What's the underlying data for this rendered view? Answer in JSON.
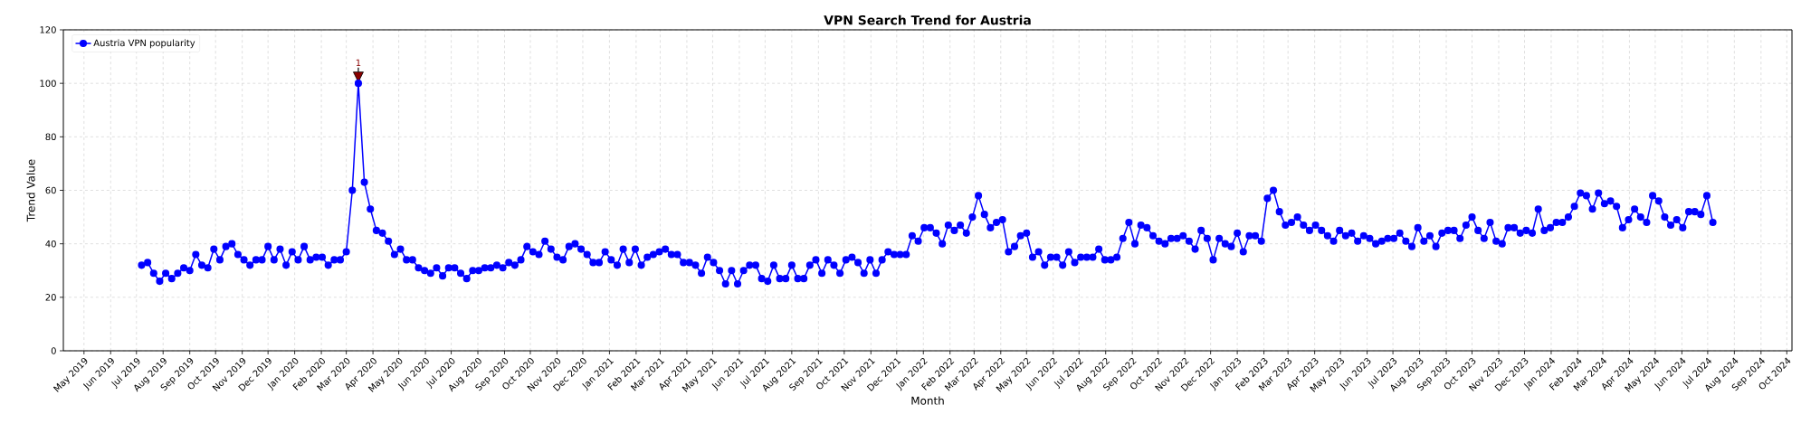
{
  "chart_data": {
    "type": "line",
    "title": "VPN Search Trend for Austria",
    "xlabel": "Month",
    "ylabel": "Trend Value",
    "x": [
      "2019-07-07",
      "2019-07-14",
      "2019-07-21",
      "2019-07-28",
      "2019-08-04",
      "2019-08-11",
      "2019-08-18",
      "2019-08-25",
      "2019-09-01",
      "2019-09-08",
      "2019-09-15",
      "2019-09-22",
      "2019-09-29",
      "2019-10-06",
      "2019-10-13",
      "2019-10-20",
      "2019-10-27",
      "2019-11-03",
      "2019-11-10",
      "2019-11-17",
      "2019-11-24",
      "2019-12-01",
      "2019-12-08",
      "2019-12-15",
      "2019-12-22",
      "2019-12-29",
      "2020-01-05",
      "2020-01-12",
      "2020-01-19",
      "2020-01-26",
      "2020-02-02",
      "2020-02-09",
      "2020-02-16",
      "2020-02-23",
      "2020-03-01",
      "2020-03-08",
      "2020-03-15",
      "2020-03-22",
      "2020-03-29",
      "2020-04-05",
      "2020-04-12",
      "2020-04-19",
      "2020-04-26",
      "2020-05-03",
      "2020-05-10",
      "2020-05-17",
      "2020-05-24",
      "2020-05-31",
      "2020-06-07",
      "2020-06-14",
      "2020-06-21",
      "2020-06-28",
      "2020-07-05",
      "2020-07-12",
      "2020-07-19",
      "2020-07-26",
      "2020-08-02",
      "2020-08-09",
      "2020-08-16",
      "2020-08-23",
      "2020-08-30",
      "2020-09-06",
      "2020-09-13",
      "2020-09-20",
      "2020-09-27",
      "2020-10-04",
      "2020-10-11",
      "2020-10-18",
      "2020-10-25",
      "2020-11-01",
      "2020-11-08",
      "2020-11-15",
      "2020-11-22",
      "2020-11-29",
      "2020-12-06",
      "2020-12-13",
      "2020-12-20",
      "2020-12-27",
      "2021-01-03",
      "2021-01-10",
      "2021-01-17",
      "2021-01-24",
      "2021-01-31",
      "2021-02-07",
      "2021-02-14",
      "2021-02-21",
      "2021-02-28",
      "2021-03-07",
      "2021-03-14",
      "2021-03-21",
      "2021-03-28",
      "2021-04-04",
      "2021-04-11",
      "2021-04-18",
      "2021-04-25",
      "2021-05-02",
      "2021-05-09",
      "2021-05-16",
      "2021-05-23",
      "2021-05-30",
      "2021-06-06",
      "2021-06-13",
      "2021-06-20",
      "2021-06-27",
      "2021-07-04",
      "2021-07-11",
      "2021-07-18",
      "2021-07-25",
      "2021-08-01",
      "2021-08-08",
      "2021-08-15",
      "2021-08-22",
      "2021-08-29",
      "2021-09-05",
      "2021-09-12",
      "2021-09-19",
      "2021-09-26",
      "2021-10-03",
      "2021-10-10",
      "2021-10-17",
      "2021-10-24",
      "2021-10-31",
      "2021-11-07",
      "2021-11-14",
      "2021-11-21",
      "2021-11-28",
      "2021-12-05",
      "2021-12-12",
      "2021-12-19",
      "2021-12-26",
      "2022-01-02",
      "2022-01-09",
      "2022-01-16",
      "2022-01-23",
      "2022-01-30",
      "2022-02-06",
      "2022-02-13",
      "2022-02-20",
      "2022-02-27",
      "2022-03-06",
      "2022-03-13",
      "2022-03-20",
      "2022-03-27",
      "2022-04-03",
      "2022-04-10",
      "2022-04-17",
      "2022-04-24",
      "2022-05-01",
      "2022-05-08",
      "2022-05-15",
      "2022-05-22",
      "2022-05-29",
      "2022-06-05",
      "2022-06-12",
      "2022-06-19",
      "2022-06-26",
      "2022-07-03",
      "2022-07-10",
      "2022-07-17",
      "2022-07-24",
      "2022-07-31",
      "2022-08-07",
      "2022-08-14",
      "2022-08-21",
      "2022-08-28",
      "2022-09-04",
      "2022-09-11",
      "2022-09-18",
      "2022-09-25",
      "2022-10-02",
      "2022-10-09",
      "2022-10-16",
      "2022-10-23",
      "2022-10-30",
      "2022-11-06",
      "2022-11-13",
      "2022-11-20",
      "2022-11-27",
      "2022-12-04",
      "2022-12-11",
      "2022-12-18",
      "2022-12-25",
      "2023-01-01",
      "2023-01-08",
      "2023-01-15",
      "2023-01-22",
      "2023-01-29",
      "2023-02-05",
      "2023-02-12",
      "2023-02-19",
      "2023-02-26",
      "2023-03-05",
      "2023-03-12",
      "2023-03-19",
      "2023-03-26",
      "2023-04-02",
      "2023-04-09",
      "2023-04-16",
      "2023-04-23",
      "2023-04-30",
      "2023-05-07",
      "2023-05-14",
      "2023-05-21",
      "2023-05-28",
      "2023-06-04",
      "2023-06-11",
      "2023-06-18",
      "2023-06-25",
      "2023-07-02",
      "2023-07-09",
      "2023-07-16",
      "2023-07-23",
      "2023-07-30",
      "2023-08-06",
      "2023-08-13",
      "2023-08-20",
      "2023-08-27",
      "2023-09-03",
      "2023-09-10",
      "2023-09-17",
      "2023-09-24",
      "2023-10-01",
      "2023-10-08",
      "2023-10-15",
      "2023-10-22",
      "2023-10-29",
      "2023-11-05",
      "2023-11-12",
      "2023-11-19",
      "2023-11-26",
      "2023-12-03",
      "2023-12-10",
      "2023-12-17",
      "2023-12-24",
      "2023-12-31",
      "2024-01-07",
      "2024-01-14",
      "2024-01-21",
      "2024-01-28",
      "2024-02-04",
      "2024-02-11",
      "2024-02-18",
      "2024-02-25",
      "2024-03-03",
      "2024-03-10",
      "2024-03-17",
      "2024-03-24",
      "2024-03-31",
      "2024-04-07",
      "2024-04-14",
      "2024-04-21",
      "2024-04-28",
      "2024-05-05",
      "2024-05-12",
      "2024-05-19",
      "2024-05-26",
      "2024-06-02",
      "2024-06-09",
      "2024-06-16",
      "2024-06-23",
      "2024-06-30",
      "2024-07-07"
    ],
    "series": [
      {
        "name": "Austria VPN popularity",
        "color": "#0000ff",
        "values": [
          32,
          33,
          29,
          26,
          29,
          27,
          29,
          31,
          30,
          36,
          32,
          31,
          38,
          34,
          39,
          40,
          36,
          34,
          32,
          34,
          34,
          39,
          34,
          38,
          32,
          37,
          34,
          39,
          34,
          35,
          35,
          32,
          34,
          34,
          37,
          60,
          100,
          63,
          53,
          45,
          44,
          41,
          36,
          38,
          34,
          34,
          31,
          30,
          29,
          31,
          28,
          31,
          31,
          29,
          27,
          30,
          30,
          31,
          31,
          32,
          31,
          33,
          32,
          34,
          39,
          37,
          36,
          41,
          38,
          35,
          34,
          39,
          40,
          38,
          36,
          33,
          33,
          37,
          34,
          32,
          38,
          33,
          38,
          32,
          35,
          36,
          37,
          38,
          36,
          36,
          33,
          33,
          32,
          29,
          35,
          33,
          30,
          25,
          30,
          25,
          30,
          32,
          32,
          27,
          26,
          32,
          27,
          27,
          32,
          27,
          27,
          32,
          34,
          29,
          34,
          32,
          29,
          34,
          35,
          33,
          29,
          34,
          29,
          34,
          37,
          36,
          36,
          36,
          43,
          41,
          46,
          46,
          44,
          40,
          47,
          45,
          47,
          44,
          50,
          58,
          51,
          46,
          48,
          49,
          37,
          39,
          43,
          44,
          35,
          37,
          32,
          35,
          35,
          32,
          37,
          33,
          35,
          35,
          35,
          38,
          34,
          34,
          35,
          42,
          48,
          40,
          47,
          46,
          43,
          41,
          40,
          42,
          42,
          43,
          41,
          38,
          45,
          42,
          34,
          42,
          40,
          39,
          44,
          37,
          43,
          43,
          41,
          57,
          60,
          52,
          47,
          48,
          50,
          47,
          45,
          47,
          45,
          43,
          41,
          45,
          43,
          44,
          41,
          43,
          42,
          40,
          41,
          42,
          42,
          44,
          41,
          39,
          46,
          41,
          43,
          39,
          44,
          45,
          45,
          42,
          47,
          50,
          45,
          42,
          48,
          41,
          40,
          46,
          46,
          44,
          45,
          44,
          53,
          45,
          46,
          48,
          48,
          50,
          54,
          59,
          58,
          53,
          59,
          55,
          56,
          54,
          46,
          49,
          53,
          50,
          48,
          58,
          56,
          50,
          47,
          49,
          46,
          52,
          52,
          51,
          58,
          48
        ]
      }
    ],
    "annotations": [
      {
        "text": "1",
        "x": "2020-03-15",
        "y": 100
      }
    ],
    "xlim": [
      "2019-04-07",
      "2024-10-07"
    ],
    "xticks": [
      {
        "value": "2019-05-01",
        "label": "May 2019"
      },
      {
        "value": "2019-06-01",
        "label": "Jun 2019"
      },
      {
        "value": "2019-07-01",
        "label": "Jul 2019"
      },
      {
        "value": "2019-08-01",
        "label": "Aug 2019"
      },
      {
        "value": "2019-09-01",
        "label": "Sep 2019"
      },
      {
        "value": "2019-10-01",
        "label": "Oct 2019"
      },
      {
        "value": "2019-11-01",
        "label": "Nov 2019"
      },
      {
        "value": "2019-12-01",
        "label": "Dec 2019"
      },
      {
        "value": "2020-01-01",
        "label": "Jan 2020"
      },
      {
        "value": "2020-02-01",
        "label": "Feb 2020"
      },
      {
        "value": "2020-03-01",
        "label": "Mar 2020"
      },
      {
        "value": "2020-04-01",
        "label": "Apr 2020"
      },
      {
        "value": "2020-05-01",
        "label": "May 2020"
      },
      {
        "value": "2020-06-01",
        "label": "Jun 2020"
      },
      {
        "value": "2020-07-01",
        "label": "Jul 2020"
      },
      {
        "value": "2020-08-01",
        "label": "Aug 2020"
      },
      {
        "value": "2020-09-01",
        "label": "Sep 2020"
      },
      {
        "value": "2020-10-01",
        "label": "Oct 2020"
      },
      {
        "value": "2020-11-01",
        "label": "Nov 2020"
      },
      {
        "value": "2020-12-01",
        "label": "Dec 2020"
      },
      {
        "value": "2021-01-01",
        "label": "Jan 2021"
      },
      {
        "value": "2021-02-01",
        "label": "Feb 2021"
      },
      {
        "value": "2021-03-01",
        "label": "Mar 2021"
      },
      {
        "value": "2021-04-01",
        "label": "Apr 2021"
      },
      {
        "value": "2021-05-01",
        "label": "May 2021"
      },
      {
        "value": "2021-06-01",
        "label": "Jun 2021"
      },
      {
        "value": "2021-07-01",
        "label": "Jul 2021"
      },
      {
        "value": "2021-08-01",
        "label": "Aug 2021"
      },
      {
        "value": "2021-09-01",
        "label": "Sep 2021"
      },
      {
        "value": "2021-10-01",
        "label": "Oct 2021"
      },
      {
        "value": "2021-11-01",
        "label": "Nov 2021"
      },
      {
        "value": "2021-12-01",
        "label": "Dec 2021"
      },
      {
        "value": "2022-01-01",
        "label": "Jan 2022"
      },
      {
        "value": "2022-02-01",
        "label": "Feb 2022"
      },
      {
        "value": "2022-03-01",
        "label": "Mar 2022"
      },
      {
        "value": "2022-04-01",
        "label": "Apr 2022"
      },
      {
        "value": "2022-05-01",
        "label": "May 2022"
      },
      {
        "value": "2022-06-01",
        "label": "Jun 2022"
      },
      {
        "value": "2022-07-01",
        "label": "Jul 2022"
      },
      {
        "value": "2022-08-01",
        "label": "Aug 2022"
      },
      {
        "value": "2022-09-01",
        "label": "Sep 2022"
      },
      {
        "value": "2022-10-01",
        "label": "Oct 2022"
      },
      {
        "value": "2022-11-01",
        "label": "Nov 2022"
      },
      {
        "value": "2022-12-01",
        "label": "Dec 2022"
      },
      {
        "value": "2023-01-01",
        "label": "Jan 2023"
      },
      {
        "value": "2023-02-01",
        "label": "Feb 2023"
      },
      {
        "value": "2023-03-01",
        "label": "Mar 2023"
      },
      {
        "value": "2023-04-01",
        "label": "Apr 2023"
      },
      {
        "value": "2023-05-01",
        "label": "May 2023"
      },
      {
        "value": "2023-06-01",
        "label": "Jun 2023"
      },
      {
        "value": "2023-07-01",
        "label": "Jul 2023"
      },
      {
        "value": "2023-08-01",
        "label": "Aug 2023"
      },
      {
        "value": "2023-09-01",
        "label": "Sep 2023"
      },
      {
        "value": "2023-10-01",
        "label": "Oct 2023"
      },
      {
        "value": "2023-11-01",
        "label": "Nov 2023"
      },
      {
        "value": "2023-12-01",
        "label": "Dec 2023"
      },
      {
        "value": "2024-01-01",
        "label": "Jan 2024"
      },
      {
        "value": "2024-02-01",
        "label": "Feb 2024"
      },
      {
        "value": "2024-03-01",
        "label": "Mar 2024"
      },
      {
        "value": "2024-04-01",
        "label": "Apr 2024"
      },
      {
        "value": "2024-05-01",
        "label": "May 2024"
      },
      {
        "value": "2024-06-01",
        "label": "Jun 2024"
      },
      {
        "value": "2024-07-01",
        "label": "Jul 2024"
      },
      {
        "value": "2024-08-01",
        "label": "Aug 2024"
      },
      {
        "value": "2024-09-01",
        "label": "Sep 2024"
      },
      {
        "value": "2024-10-01",
        "label": "Oct 2024"
      }
    ],
    "ylim": [
      0,
      120
    ],
    "yticks": [
      0,
      20,
      40,
      60,
      80,
      100,
      120
    ],
    "grid": true,
    "legend": "top left",
    "marker": "circle",
    "line_style": "solid"
  }
}
